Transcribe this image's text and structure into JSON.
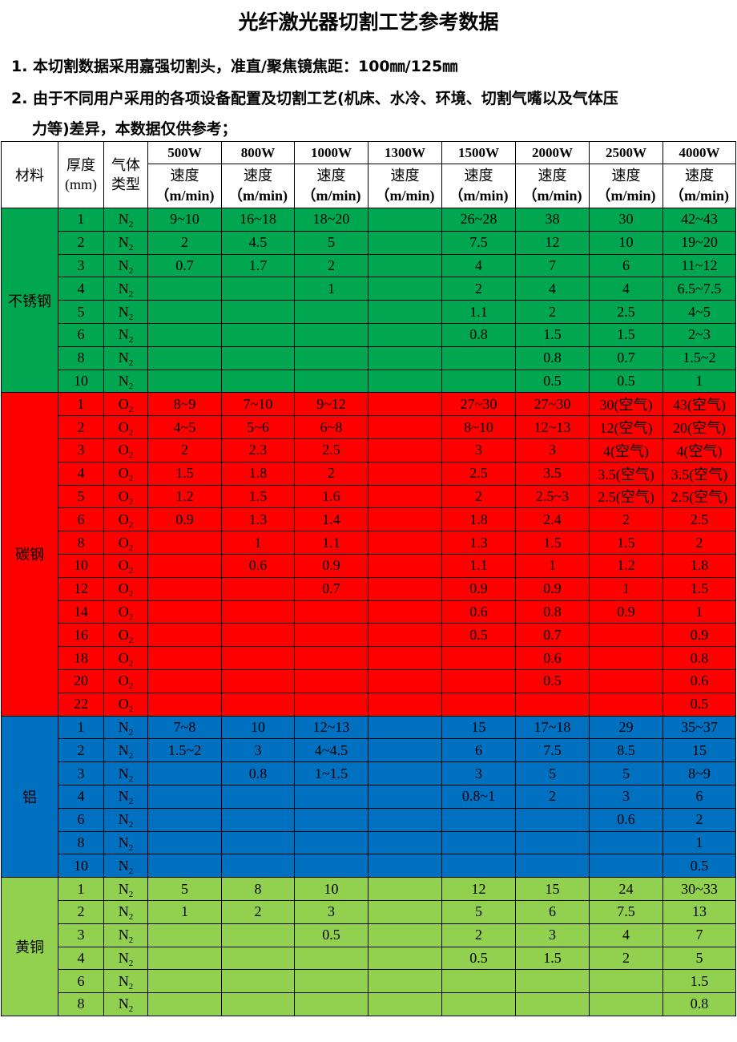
{
  "title": "光纤激光器切割工艺参考数据",
  "notes": [
    "1. 本切割数据采用嘉强切割头，准直/聚焦镜焦距：100㎜/125㎜",
    "2. 由于不同用户采用的各项设备配置及切割工艺(机床、水冷、环境、切割气嘴以及气体压",
    "力等)差异，本数据仅供参考；"
  ],
  "table": {
    "headers": {
      "material": "材料",
      "thickness": "厚度",
      "thickness_unit": "(mm)",
      "gas": "气体类型",
      "speed": "速度",
      "speed_unit": "（m/min)",
      "powers": [
        "500W",
        "800W",
        "1000W",
        "1300W",
        "1500W",
        "2000W",
        "2500W",
        "4000W"
      ]
    },
    "materials": [
      {
        "name": "不锈钢",
        "color": "#00a650",
        "rows": [
          [
            "1",
            "N2",
            "9~10",
            "16~18",
            "18~20",
            "",
            "26~28",
            "38",
            "30",
            "42~43"
          ],
          [
            "2",
            "N2",
            "2",
            "4.5",
            "5",
            "",
            "7.5",
            "12",
            "10",
            "19~20"
          ],
          [
            "3",
            "N2",
            "0.7",
            "1.7",
            "2",
            "",
            "4",
            "7",
            "6",
            "11~12"
          ],
          [
            "4",
            "N2",
            "",
            "",
            "1",
            "",
            "2",
            "4",
            "4",
            "6.5~7.5"
          ],
          [
            "5",
            "N2",
            "",
            "",
            "",
            "",
            "1.1",
            "2",
            "2.5",
            "4~5"
          ],
          [
            "6",
            "N2",
            "",
            "",
            "",
            "",
            "0.8",
            "1.5",
            "1.5",
            "2~3"
          ],
          [
            "8",
            "N2",
            "",
            "",
            "",
            "",
            "",
            "0.8",
            "0.7",
            "1.5~2"
          ],
          [
            "10",
            "N2",
            "",
            "",
            "",
            "",
            "",
            "0.5",
            "0.5",
            "1"
          ]
        ]
      },
      {
        "name": "碳钢",
        "color": "#ff0000",
        "rows": [
          [
            "1",
            "O2",
            "8~9",
            "7~10",
            "9~12",
            "",
            "27~30",
            "27~30",
            "30(空气)",
            "43(空气)"
          ],
          [
            "2",
            "O2",
            "4~5",
            "5~6",
            "6~8",
            "",
            "8~10",
            "12~13",
            "12(空气)",
            "20(空气)"
          ],
          [
            "3",
            "O2",
            "2",
            "2.3",
            "2.5",
            "",
            "3",
            "3",
            "4(空气)",
            "4(空气)"
          ],
          [
            "4",
            "O2",
            "1.5",
            "1.8",
            "2",
            "",
            "2.5",
            "3.5",
            "3.5(空气)",
            "3.5(空气)"
          ],
          [
            "5",
            "O2",
            "1.2",
            "1.5",
            "1.6",
            "",
            "2",
            "2.5~3",
            "2.5(空气)",
            "2.5(空气)"
          ],
          [
            "6",
            "O2",
            "0.9",
            "1.3",
            "1.4",
            "",
            "1.8",
            "2.4",
            "2",
            "2.5"
          ],
          [
            "8",
            "O2",
            "",
            "1",
            "1.1",
            "",
            "1.3",
            "1.5",
            "1.5",
            "2"
          ],
          [
            "10",
            "O2",
            "",
            "0.6",
            "0.9",
            "",
            "1.1",
            "1",
            "1.2",
            "1.8"
          ],
          [
            "12",
            "O2",
            "",
            "",
            "0.7",
            "",
            "0.9",
            "0.9",
            "1",
            "1.5"
          ],
          [
            "14",
            "O2",
            "",
            "",
            "",
            "",
            "0.6",
            "0.8",
            "0.9",
            "1"
          ],
          [
            "16",
            "O2",
            "",
            "",
            "",
            "",
            "0.5",
            "0.7",
            "",
            "0.9"
          ],
          [
            "18",
            "O2",
            "",
            "",
            "",
            "",
            "",
            "0.6",
            "",
            "0.8"
          ],
          [
            "20",
            "O2",
            "",
            "",
            "",
            "",
            "",
            "0.5",
            "",
            "0.6"
          ],
          [
            "22",
            "O2",
            "",
            "",
            "",
            "",
            "",
            "",
            "",
            "0.5"
          ]
        ]
      },
      {
        "name": "铝",
        "color": "#0070c0",
        "rows": [
          [
            "1",
            "N2",
            "7~8",
            "10",
            "12~13",
            "",
            "15",
            "17~18",
            "29",
            "35~37"
          ],
          [
            "2",
            "N2",
            "1.5~2",
            "3",
            "4~4.5",
            "",
            "6",
            "7.5",
            "8.5",
            "15"
          ],
          [
            "3",
            "N2",
            "",
            "0.8",
            "1~1.5",
            "",
            "3",
            "5",
            "5",
            "8~9"
          ],
          [
            "4",
            "N2",
            "",
            "",
            "",
            "",
            "0.8~1",
            "2",
            "3",
            "6"
          ],
          [
            "6",
            "N2",
            "",
            "",
            "",
            "",
            "",
            "",
            "0.6",
            "2"
          ],
          [
            "8",
            "N2",
            "",
            "",
            "",
            "",
            "",
            "",
            "",
            "1"
          ],
          [
            "10",
            "N2",
            "",
            "",
            "",
            "",
            "",
            "",
            "",
            "0.5"
          ]
        ]
      },
      {
        "name": "黄铜",
        "color": "#92d050",
        "rows": [
          [
            "1",
            "N2",
            "5",
            "8",
            "10",
            "",
            "12",
            "15",
            "24",
            "30~33"
          ],
          [
            "2",
            "N2",
            "1",
            "2",
            "3",
            "",
            "5",
            "6",
            "7.5",
            "13"
          ],
          [
            "3",
            "N2",
            "",
            "",
            "0.5",
            "",
            "2",
            "3",
            "4",
            "7"
          ],
          [
            "4",
            "N2",
            "",
            "",
            "",
            "",
            "0.5",
            "1.5",
            "2",
            "5"
          ],
          [
            "6",
            "N2",
            "",
            "",
            "",
            "",
            "",
            "",
            "",
            "1.5"
          ],
          [
            "8",
            "N2",
            "",
            "",
            "",
            "",
            "",
            "",
            "",
            "0.8"
          ]
        ]
      }
    ]
  }
}
